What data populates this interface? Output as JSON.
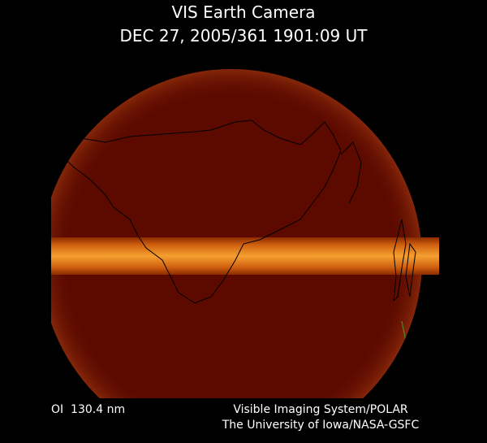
{
  "header": {
    "title": "VIS Earth Camera",
    "timestamp": "DEC 27, 2005/361 1901:09 UT"
  },
  "footer": {
    "filter": "OI  130.4 nm",
    "credits": [
      "Visible Imaging System/POLAR",
      "The University of Iowa/NASA-GSFC"
    ]
  }
}
